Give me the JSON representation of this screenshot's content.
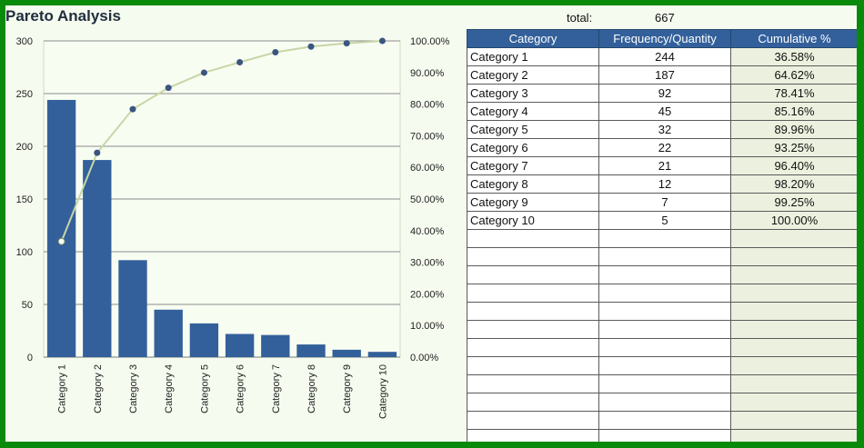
{
  "title": "Pareto Analysis",
  "summary": {
    "total_label": "total:",
    "total_value": "667"
  },
  "table": {
    "headers": [
      "Category",
      "Frequency/Quantity",
      "Cumulative %"
    ],
    "rows": [
      [
        "Category 1",
        "244",
        "36.58%"
      ],
      [
        "Category 2",
        "187",
        "64.62%"
      ],
      [
        "Category 3",
        "92",
        "78.41%"
      ],
      [
        "Category 4",
        "45",
        "85.16%"
      ],
      [
        "Category 5",
        "32",
        "89.96%"
      ],
      [
        "Category 6",
        "22",
        "93.25%"
      ],
      [
        "Category 7",
        "21",
        "96.40%"
      ],
      [
        "Category 8",
        "12",
        "98.20%"
      ],
      [
        "Category 9",
        "7",
        "99.25%"
      ],
      [
        "Category 10",
        "5",
        "100.00%"
      ]
    ],
    "empty_rows": 12
  },
  "chart_data": {
    "type": "bar",
    "title": "",
    "categories": [
      "Category 1",
      "Category 2",
      "Category 3",
      "Category 4",
      "Category 5",
      "Category 6",
      "Category 7",
      "Category 8",
      "Category 9",
      "Category 10"
    ],
    "series": [
      {
        "type": "bar",
        "values": [
          244,
          187,
          92,
          45,
          32,
          22,
          21,
          12,
          7,
          5
        ],
        "color": "#33609a"
      },
      {
        "type": "line",
        "axis": "secondary",
        "values": [
          36.58,
          64.62,
          78.41,
          85.16,
          89.96,
          93.25,
          96.4,
          98.2,
          99.25,
          100.0
        ],
        "color": "#c7d6a6",
        "marker_color": "#3a5580"
      }
    ],
    "ylim": [
      0,
      300
    ],
    "yticks": [
      "0",
      "50",
      "100",
      "150",
      "200",
      "250",
      "300"
    ],
    "y2lim": [
      0,
      100
    ],
    "y2ticks": [
      "0.00%",
      "10.00%",
      "20.00%",
      "30.00%",
      "40.00%",
      "50.00%",
      "60.00%",
      "70.00%",
      "80.00%",
      "90.00%",
      "100.00%"
    ],
    "grid": true,
    "legend": "none"
  },
  "colors": {
    "frame": "#0a8a0a",
    "bar": "#33609a",
    "header_bg": "#33609a",
    "cumulative_bg": "#ebf1de",
    "line": "#c7d6a6"
  }
}
